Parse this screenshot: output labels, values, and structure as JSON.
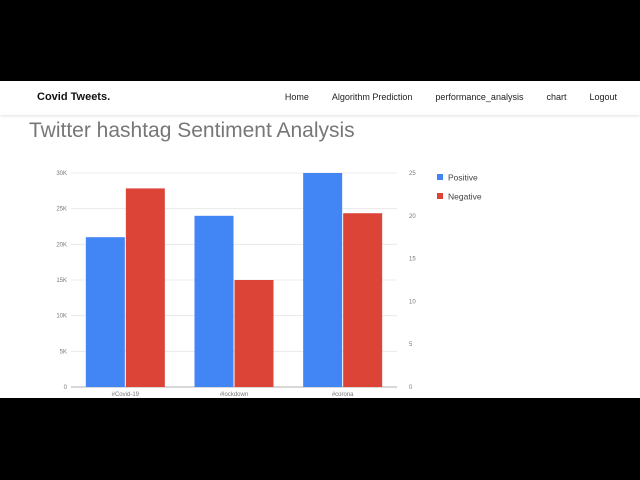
{
  "navbar": {
    "brand": "Covid Tweets.",
    "links": [
      "Home",
      "Algorithm Prediction",
      "performance_analysis",
      "chart",
      "Logout"
    ]
  },
  "page": {
    "title": "Twitter hashtag Sentiment Analysis"
  },
  "chart_data": {
    "type": "bar",
    "categories": [
      "#Covid-19",
      "#lockdown",
      "#corona"
    ],
    "series": [
      {
        "name": "Positive",
        "values": [
          21000,
          24000,
          30000
        ],
        "axis": "left",
        "color": "#4285f4"
      },
      {
        "name": "Negative",
        "values": [
          23.2,
          12.5,
          20.3
        ],
        "axis": "right",
        "color": "#db4437"
      }
    ],
    "left_axis": {
      "ylim": [
        0,
        30000
      ],
      "ticks": [
        "0",
        "5K",
        "10K",
        "15K",
        "20K",
        "25K",
        "30K"
      ]
    },
    "right_axis": {
      "ylim": [
        0,
        25
      ],
      "ticks": [
        "0",
        "5",
        "10",
        "15",
        "20",
        "25"
      ]
    },
    "legend": "right",
    "grid": true
  }
}
